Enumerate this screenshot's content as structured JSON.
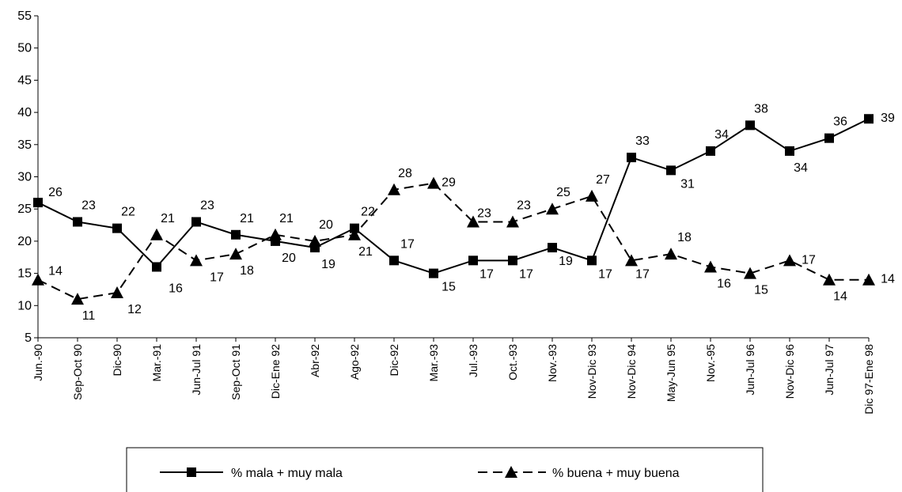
{
  "chart_data": {
    "type": "line",
    "title": "",
    "xlabel": "",
    "ylabel": "",
    "ylim": [
      5,
      55
    ],
    "yticks": [
      5,
      10,
      15,
      20,
      25,
      30,
      35,
      40,
      45,
      50,
      55
    ],
    "grid": false,
    "legend_position": "bottom",
    "categories": [
      "Jun.-90",
      "Sep-Oct 90",
      "Dic-90",
      "Mar.-91",
      "Jun-Jul 91",
      "Sep-Oct 91",
      "Dic-Ene 92",
      "Abr-92",
      "Ago-92",
      "Dic-92",
      "Mar.-93",
      "Jul.-93",
      "Oct.-93",
      "Nov.-93",
      "Nov-Dic 93",
      "Nov-Dic 94",
      "May-Jun 95",
      "Nov.-95",
      "Jun-Jul 96",
      "Nov-Dic 96",
      "Jun-Jul 97",
      "Dic 97-Ene 98"
    ],
    "series": [
      {
        "name": "% mala + muy mala",
        "marker": "square",
        "dash": "solid",
        "values": [
          26,
          23,
          22,
          16,
          23,
          21,
          20,
          19,
          22,
          17,
          15,
          17,
          17,
          19,
          17,
          33,
          31,
          34,
          38,
          34,
          36,
          39
        ]
      },
      {
        "name": "% buena + muy buena",
        "marker": "triangle",
        "dash": "dashed",
        "values": [
          14,
          11,
          12,
          21,
          17,
          18,
          21,
          20,
          21,
          28,
          29,
          23,
          23,
          25,
          27,
          17,
          18,
          16,
          15,
          17,
          14,
          14
        ]
      }
    ]
  }
}
